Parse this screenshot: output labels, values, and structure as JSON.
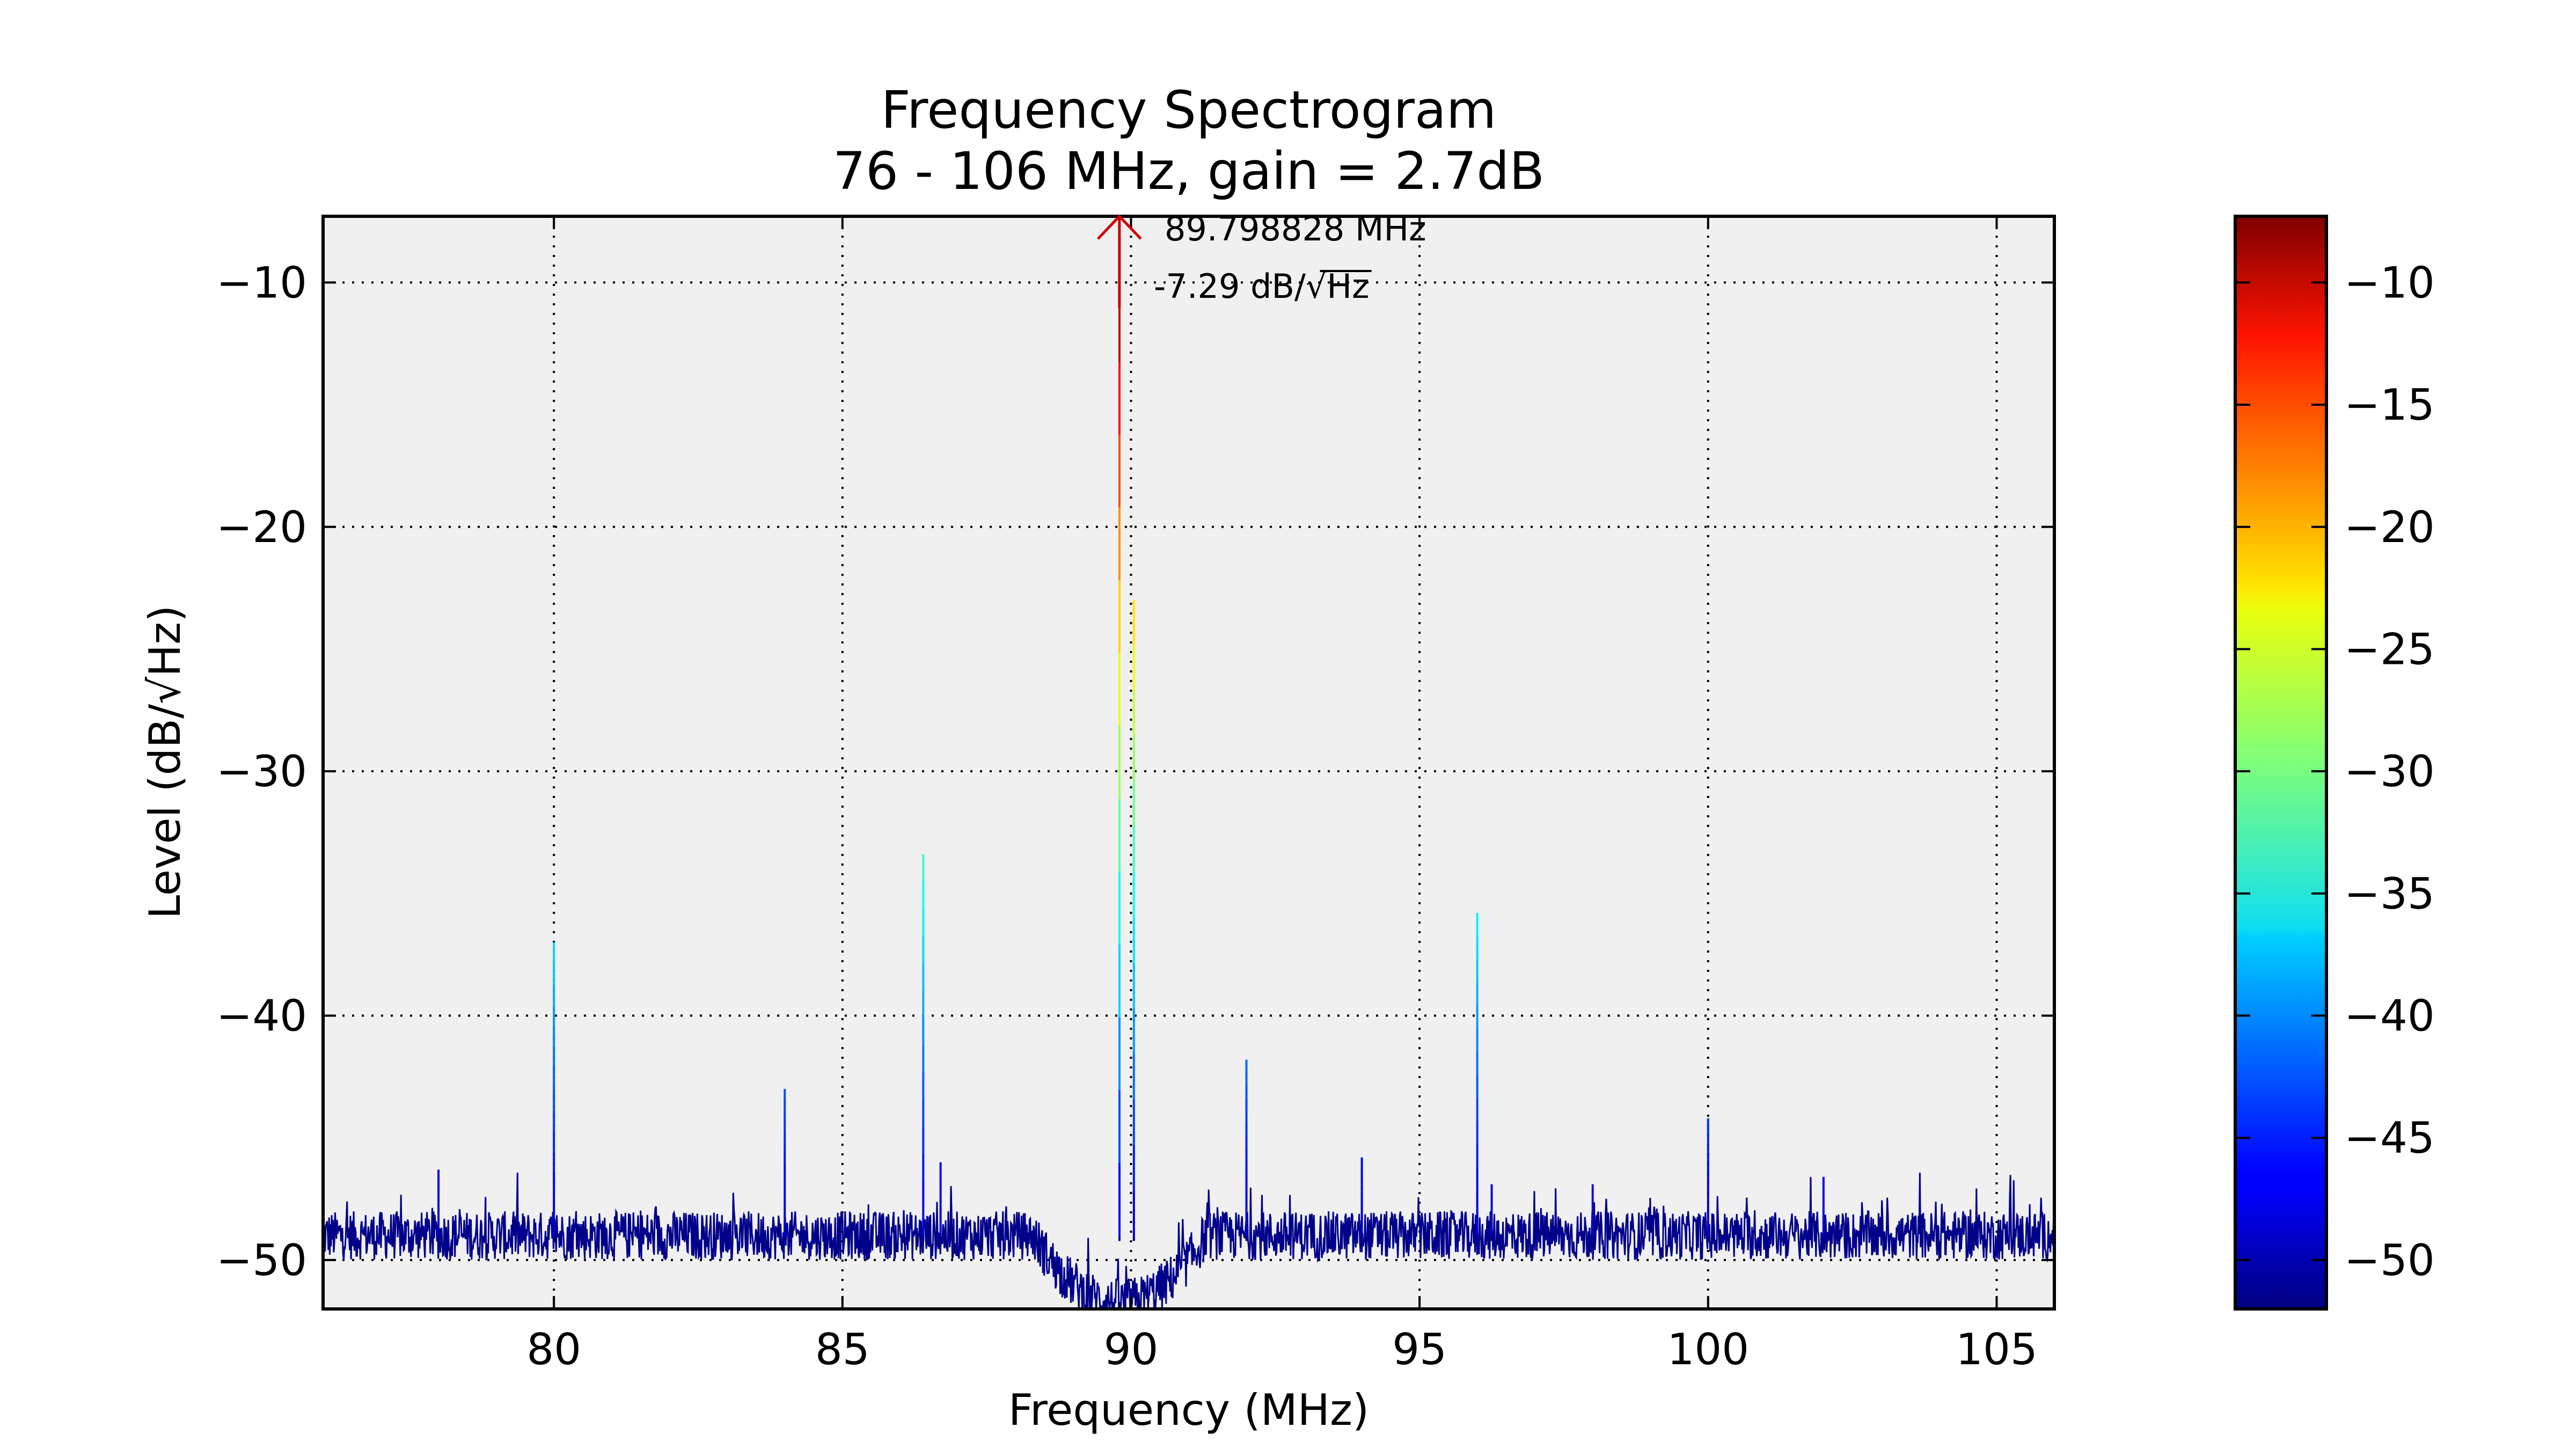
{
  "chart_data": {
    "type": "line",
    "title": "Frequency Spectrogram",
    "subtitle": "76 - 106 MHz, gain = 2.7dB",
    "xlabel": "Frequency (MHz)",
    "ylabel": "Level (dB/√Hz)",
    "xlim": [
      76,
      106
    ],
    "ylim": [
      -52,
      -7.29
    ],
    "x_ticks": [
      80,
      85,
      90,
      95,
      100,
      105
    ],
    "y_ticks": [
      -10,
      -20,
      -30,
      -40,
      -50
    ],
    "x_tick_labels": [
      "80",
      "85",
      "90",
      "95",
      "100",
      "105"
    ],
    "y_tick_labels": [
      "−10",
      "−20",
      "−30",
      "−40",
      "−50"
    ],
    "grid": true,
    "colormap": "jet",
    "plot_background": "#f0f0f0",
    "noise_floor_db": -49,
    "trace_color": "#00008b",
    "spectrum": {
      "peaks": [
        {
          "freq": 78.0,
          "level": -46.3
        },
        {
          "freq": 80.0,
          "level": -37.0
        },
        {
          "freq": 84.0,
          "level": -43.0
        },
        {
          "freq": 86.4,
          "level": -33.4
        },
        {
          "freq": 86.7,
          "level": -46.0
        },
        {
          "freq": 89.8,
          "level": -7.29
        },
        {
          "freq": 90.05,
          "level": -23.0
        },
        {
          "freq": 92.0,
          "level": -41.8
        },
        {
          "freq": 94.0,
          "level": -45.8
        },
        {
          "freq": 96.0,
          "level": -35.8
        },
        {
          "freq": 96.25,
          "level": -46.9
        },
        {
          "freq": 98.0,
          "level": -46.9
        },
        {
          "freq": 100.0,
          "level": -44.2
        },
        {
          "freq": 102.0,
          "level": -46.6
        }
      ],
      "dip": {
        "start": 88.3,
        "end": 91.3,
        "depth_db": -51.5
      }
    },
    "annotation": {
      "freq": 89.798828,
      "level": -7.29,
      "line1": "89.798828 MHz",
      "line2_prefix": "-7.29 dB/",
      "line2_unit": "Hz",
      "marker_color": "#cc0000"
    },
    "colorbar": {
      "range": [
        -52,
        -7.29
      ],
      "ticks": [
        -10,
        -15,
        -20,
        -25,
        -30,
        -35,
        -40,
        -45,
        -50
      ],
      "tick_labels": [
        "−10",
        "−15",
        "−20",
        "−25",
        "−30",
        "−35",
        "−40",
        "−45",
        "−50"
      ]
    }
  }
}
